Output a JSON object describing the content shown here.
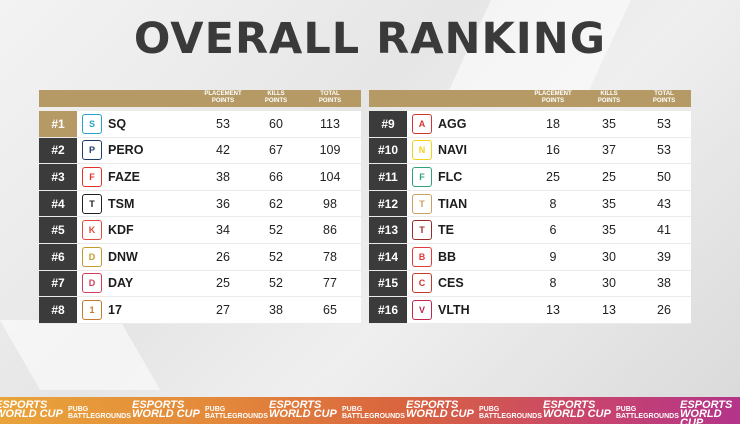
{
  "title": "OVERALL RANKING",
  "headers": {
    "placement": [
      "PLACEMENT",
      "POINTS"
    ],
    "kills": [
      "KILLS",
      "POINTS"
    ],
    "total": [
      "TOTAL",
      "POINTS"
    ]
  },
  "left": [
    {
      "rank": "#1",
      "team": "SQ",
      "placement": "53",
      "kills": "60",
      "total": "113",
      "logo_icon": "sq-logo-icon",
      "logo_color": "#27a4c8"
    },
    {
      "rank": "#2",
      "team": "PERO",
      "placement": "42",
      "kills": "67",
      "total": "109",
      "logo_icon": "pero-logo-icon",
      "logo_color": "#1f3b6b"
    },
    {
      "rank": "#3",
      "team": "FAZE",
      "placement": "38",
      "kills": "66",
      "total": "104",
      "logo_icon": "faze-logo-icon",
      "logo_color": "#e4322b"
    },
    {
      "rank": "#4",
      "team": "TSM",
      "placement": "36",
      "kills": "62",
      "total": "98",
      "logo_icon": "tsm-logo-icon",
      "logo_color": "#222222"
    },
    {
      "rank": "#5",
      "team": "KDF",
      "placement": "34",
      "kills": "52",
      "total": "86",
      "logo_icon": "kdf-logo-icon",
      "logo_color": "#e0493c"
    },
    {
      "rank": "#6",
      "team": "DNW",
      "placement": "26",
      "kills": "52",
      "total": "78",
      "logo_icon": "dnw-logo-icon",
      "logo_color": "#c59a2a"
    },
    {
      "rank": "#7",
      "team": "DAY",
      "placement": "25",
      "kills": "52",
      "total": "77",
      "logo_icon": "day-logo-icon",
      "logo_color": "#d23d5b"
    },
    {
      "rank": "#8",
      "team": "17",
      "placement": "27",
      "kills": "38",
      "total": "65",
      "logo_icon": "17-logo-icon",
      "logo_color": "#c57a2d"
    }
  ],
  "right": [
    {
      "rank": "#9",
      "team": "AGG",
      "placement": "18",
      "kills": "35",
      "total": "53",
      "logo_icon": "agg-logo-icon",
      "logo_color": "#d3342f"
    },
    {
      "rank": "#10",
      "team": "NAVI",
      "placement": "16",
      "kills": "37",
      "total": "53",
      "logo_icon": "navi-logo-icon",
      "logo_color": "#f1d31b"
    },
    {
      "rank": "#11",
      "team": "FLC",
      "placement": "25",
      "kills": "25",
      "total": "50",
      "logo_icon": "flc-logo-icon",
      "logo_color": "#2fa377"
    },
    {
      "rank": "#12",
      "team": "TIAN",
      "placement": "8",
      "kills": "35",
      "total": "43",
      "logo_icon": "tian-logo-icon",
      "logo_color": "#c9a05c"
    },
    {
      "rank": "#13",
      "team": "TE",
      "placement": "6",
      "kills": "35",
      "total": "41",
      "logo_icon": "te-logo-icon",
      "logo_color": "#9b2b2b"
    },
    {
      "rank": "#14",
      "team": "BB",
      "placement": "9",
      "kills": "30",
      "total": "39",
      "logo_icon": "bb-logo-icon",
      "logo_color": "#e23a3a"
    },
    {
      "rank": "#15",
      "team": "CES",
      "placement": "8",
      "kills": "30",
      "total": "38",
      "logo_icon": "ces-logo-icon",
      "logo_color": "#c73a2d"
    },
    {
      "rank": "#16",
      "team": "VLTH",
      "placement": "13",
      "kills": "13",
      "total": "26",
      "logo_icon": "vlth-logo-icon",
      "logo_color": "#c1274a"
    }
  ],
  "footer": {
    "brand_line1": "ESPORTS",
    "brand_line2": "WORLD CUP",
    "pubg_line1": "PUBG",
    "pubg_line2": "BATTLEGROUNDS"
  },
  "colors": {
    "accent_gold": "#b59a66",
    "rank_dark": "#3b3b3b"
  }
}
